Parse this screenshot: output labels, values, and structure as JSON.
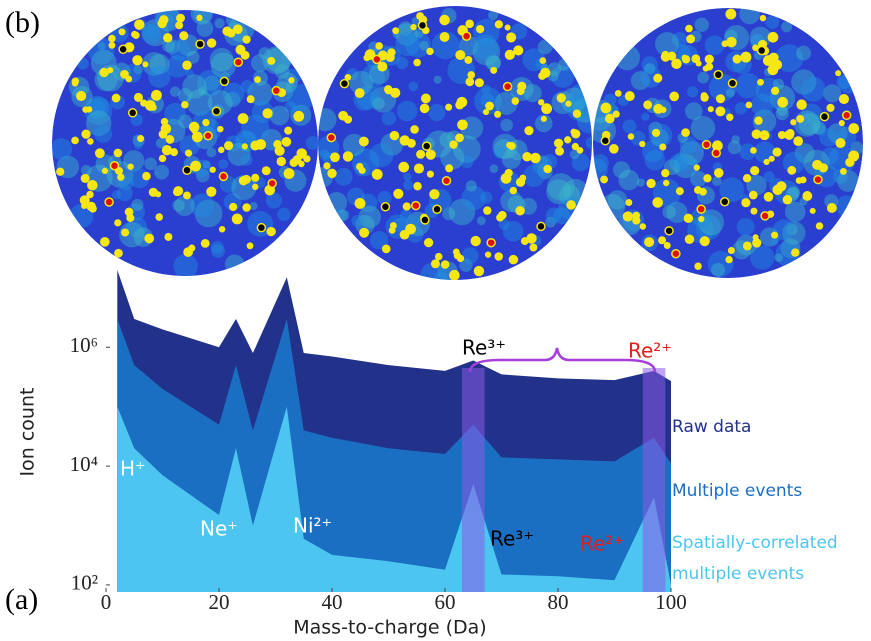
{
  "panel_labels": [
    "(b)",
    "(a)"
  ],
  "chart_data": {
    "type": "area",
    "log_y": true,
    "x_label": "Mass-to-charge (Da)",
    "y_label": "Ion count",
    "x": [
      2,
      5,
      10,
      20,
      23,
      26,
      32,
      35,
      40,
      50,
      60,
      65,
      70,
      80,
      90,
      97,
      100
    ],
    "series": [
      {
        "name": "Raw data",
        "color": "#22318a",
        "values": [
          20000000,
          3000000,
          2000000,
          1000000,
          3000000,
          800000,
          15000000,
          800000,
          700000,
          500000,
          400000,
          600000,
          350000,
          300000,
          280000,
          400000,
          270000
        ]
      },
      {
        "name": "Multiple events",
        "color": "#1b6fc2",
        "values": [
          3000000,
          500000,
          200000,
          50000,
          500000,
          40000,
          3000000,
          40000,
          30000,
          20000,
          16000,
          50000,
          14000,
          13000,
          12000,
          30000,
          11000
        ]
      },
      {
        "name": "Spatially-correlated multiple events",
        "color": "#4cc6f0",
        "values": [
          100000,
          20000,
          7000,
          1500,
          20000,
          1000,
          100000,
          600,
          320,
          250,
          180,
          5000,
          150,
          140,
          120,
          3000,
          100
        ]
      }
    ],
    "xlim": [
      0,
      100
    ],
    "xticks": [
      0,
      20,
      40,
      60,
      80,
      100
    ],
    "ylim": [
      76,
      20000000
    ],
    "yticks": [
      {
        "value": 100,
        "label": "10²"
      },
      {
        "value": 10000,
        "label": "10⁴"
      },
      {
        "value": 1000000,
        "label": "10⁶"
      }
    ],
    "highlight_ranges": [
      [
        63,
        67
      ],
      [
        95,
        99
      ]
    ],
    "annotations": [
      {
        "text": "H⁺",
        "color": "#ffffff"
      },
      {
        "text": "Ne⁺",
        "color": "#ffffff"
      },
      {
        "text": "Ni²⁺",
        "color": "#ffffff"
      },
      {
        "text": "Re³⁺",
        "color": "#000000"
      },
      {
        "text": "Re²⁺",
        "color": "#e0201c"
      },
      {
        "text": "Re³⁺",
        "color": "#000000"
      },
      {
        "text": "Re²⁺",
        "color": "#e0201c"
      }
    ]
  }
}
